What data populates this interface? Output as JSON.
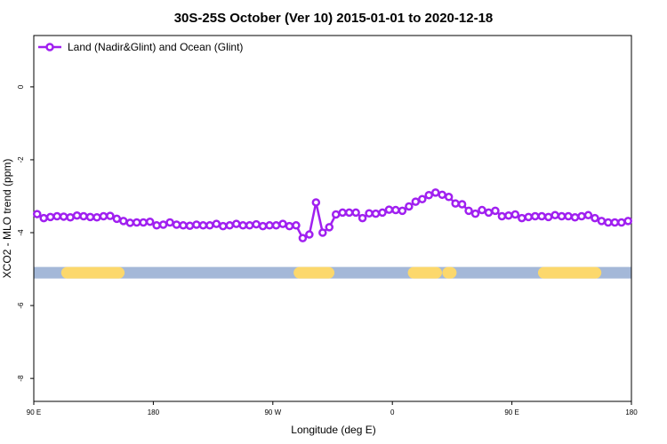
{
  "chart_data": {
    "type": "line",
    "title": "30S-25S October (Ver 10)   2015-01-01 to 2020-12-18",
    "xlabel": "Longitude (deg E)",
    "ylabel": "XCO2 - MLO trend (ppm)",
    "xlim": [
      90,
      540
    ],
    "xticks": [
      {
        "value": 90,
        "label": "90 E"
      },
      {
        "value": 180,
        "label": "180"
      },
      {
        "value": 270,
        "label": "90 W"
      },
      {
        "value": 360,
        "label": "0"
      },
      {
        "value": 450,
        "label": "90 E"
      },
      {
        "value": 540,
        "label": "180"
      }
    ],
    "ylim": [
      -8.63,
      1.41
    ],
    "yticks": [
      0,
      -2,
      -4,
      -6,
      -8
    ],
    "legend": "top-left",
    "x": [
      92.5,
      97.5,
      102.5,
      107.5,
      112.5,
      117.5,
      122.5,
      127.5,
      132.5,
      137.5,
      142.5,
      147.5,
      152.5,
      157.5,
      162.5,
      167.5,
      172.5,
      177.5,
      182.5,
      187.5,
      192.5,
      197.5,
      202.5,
      207.5,
      212.5,
      217.5,
      222.5,
      227.5,
      232.5,
      237.5,
      242.5,
      247.5,
      252.5,
      257.5,
      262.5,
      267.5,
      272.5,
      277.5,
      282.5,
      287.5,
      292.5,
      297.5,
      302.5,
      307.5,
      312.5,
      317.5,
      322.5,
      327.5,
      332.5,
      337.5,
      342.5,
      347.5,
      352.5,
      357.5,
      362.5,
      367.5,
      372.5,
      377.5,
      382.5,
      387.5,
      392.5,
      397.5,
      402.5,
      407.5,
      412.5,
      417.5,
      422.5,
      427.5,
      432.5,
      437.5,
      442.5,
      447.5,
      452.5,
      457.5,
      462.5,
      467.5,
      472.5,
      477.5,
      482.5,
      487.5,
      492.5,
      497.5,
      502.5,
      507.5,
      512.5,
      517.5,
      522.5,
      527.5,
      532.5,
      537.5
    ],
    "series": [
      {
        "name": "Land (Nadir&Glint) and Ocean (Glint)",
        "color": "#a020f0",
        "values": [
          -3.49,
          -3.6,
          -3.57,
          -3.55,
          -3.56,
          -3.58,
          -3.53,
          -3.55,
          -3.57,
          -3.58,
          -3.55,
          -3.54,
          -3.62,
          -3.68,
          -3.73,
          -3.72,
          -3.72,
          -3.7,
          -3.8,
          -3.78,
          -3.72,
          -3.78,
          -3.8,
          -3.81,
          -3.78,
          -3.8,
          -3.8,
          -3.76,
          -3.82,
          -3.8,
          -3.76,
          -3.8,
          -3.8,
          -3.77,
          -3.82,
          -3.8,
          -3.8,
          -3.76,
          -3.82,
          -3.8,
          -4.15,
          -4.05,
          -3.17,
          -4.0,
          -3.85,
          -3.5,
          -3.45,
          -3.45,
          -3.45,
          -3.6,
          -3.47,
          -3.48,
          -3.45,
          -3.37,
          -3.38,
          -3.4,
          -3.28,
          -3.15,
          -3.08,
          -2.97,
          -2.9,
          -2.96,
          -3.02,
          -3.2,
          -3.22,
          -3.4,
          -3.48,
          -3.38,
          -3.45,
          -3.4,
          -3.55,
          -3.53,
          -3.5,
          -3.6,
          -3.57,
          -3.55,
          -3.55,
          -3.57,
          -3.52,
          -3.55,
          -3.55,
          -3.58,
          -3.55,
          -3.52,
          -3.6,
          -3.68,
          -3.72,
          -3.72,
          -3.72,
          -3.68
        ]
      }
    ],
    "surface_band": {
      "level": -5.1,
      "ocean_color": "#a4b8d8",
      "land_color": "#fcd86c",
      "land": [
        [
          115,
          154
        ],
        [
          290,
          312
        ],
        [
          376,
          393
        ],
        [
          402,
          404
        ],
        [
          474,
          513
        ]
      ]
    }
  }
}
